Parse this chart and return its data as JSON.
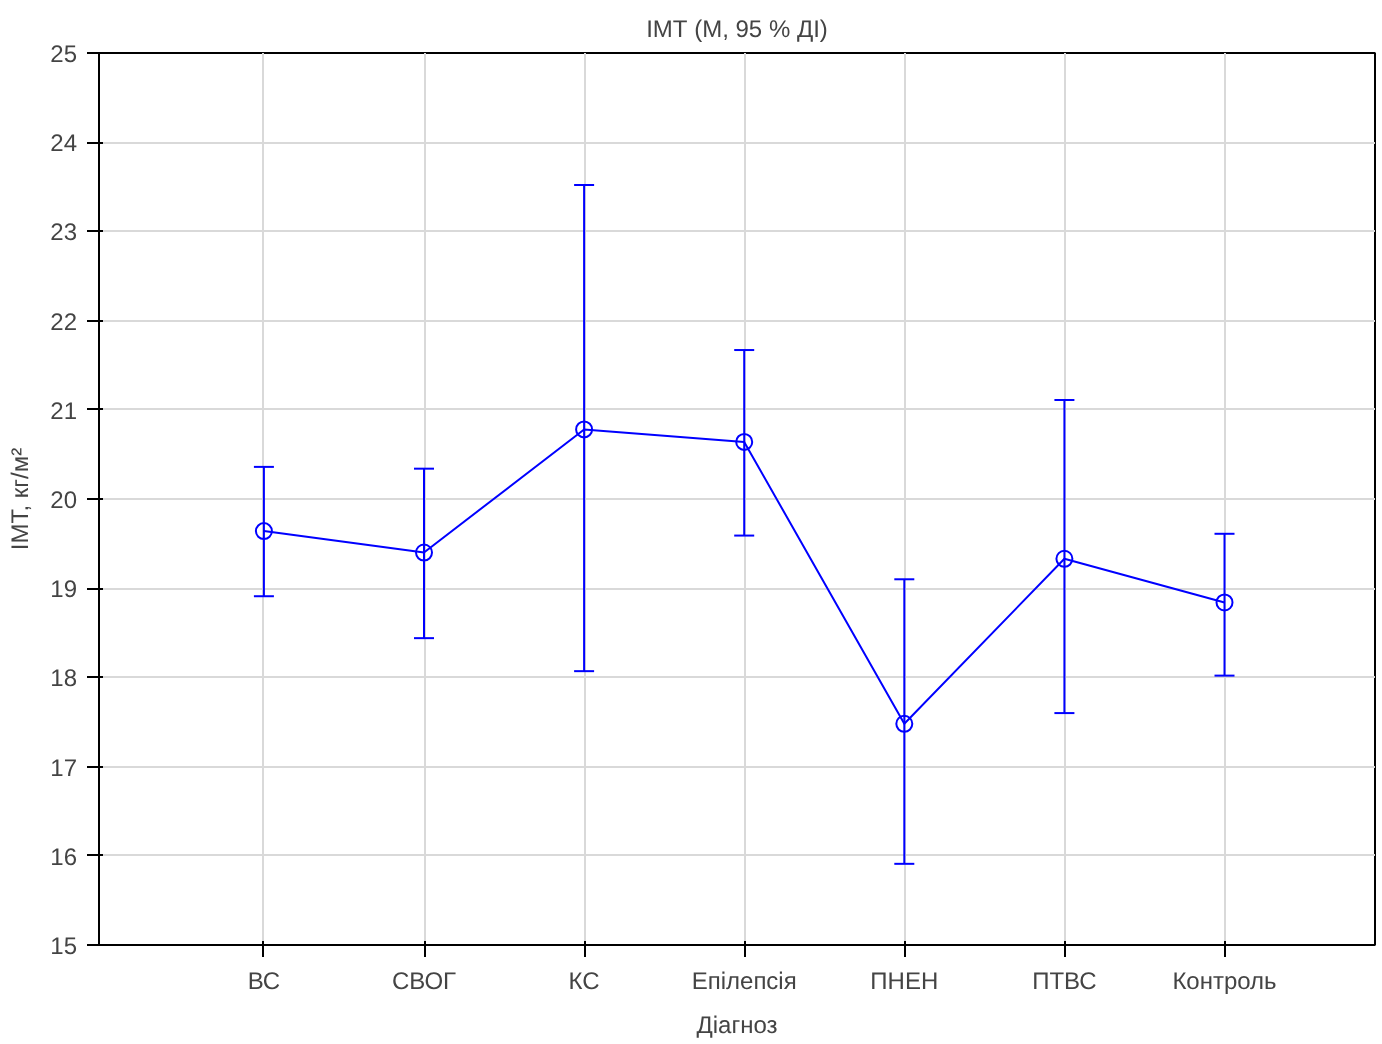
{
  "chart_data": {
    "type": "line",
    "title": "ІМТ (М, 95 % ДІ)",
    "xlabel": "Діагноз",
    "ylabel": "ІМТ, кг/м²",
    "categories": [
      "ВС",
      "СВОГ",
      "КС",
      "Епілепсія",
      "ПНЕН",
      "ПТВС",
      "Контроль"
    ],
    "series": [
      {
        "color": "#0000ff",
        "values": [
          19.64,
          19.4,
          20.78,
          20.64,
          17.48,
          19.33,
          18.84
        ],
        "errors": [
          [
            18.91,
            20.36
          ],
          [
            18.44,
            20.34
          ],
          [
            18.07,
            23.52
          ],
          [
            19.59,
            21.67
          ],
          [
            15.91,
            19.1
          ],
          [
            17.6,
            21.11
          ],
          [
            18.02,
            19.61
          ]
        ]
      }
    ],
    "ylim": [
      15,
      25
    ],
    "yticks": [
      15,
      16,
      17,
      18,
      19,
      20,
      21,
      22,
      23,
      24,
      25
    ],
    "grid": true,
    "marker": "circle",
    "line_style": "solid"
  }
}
